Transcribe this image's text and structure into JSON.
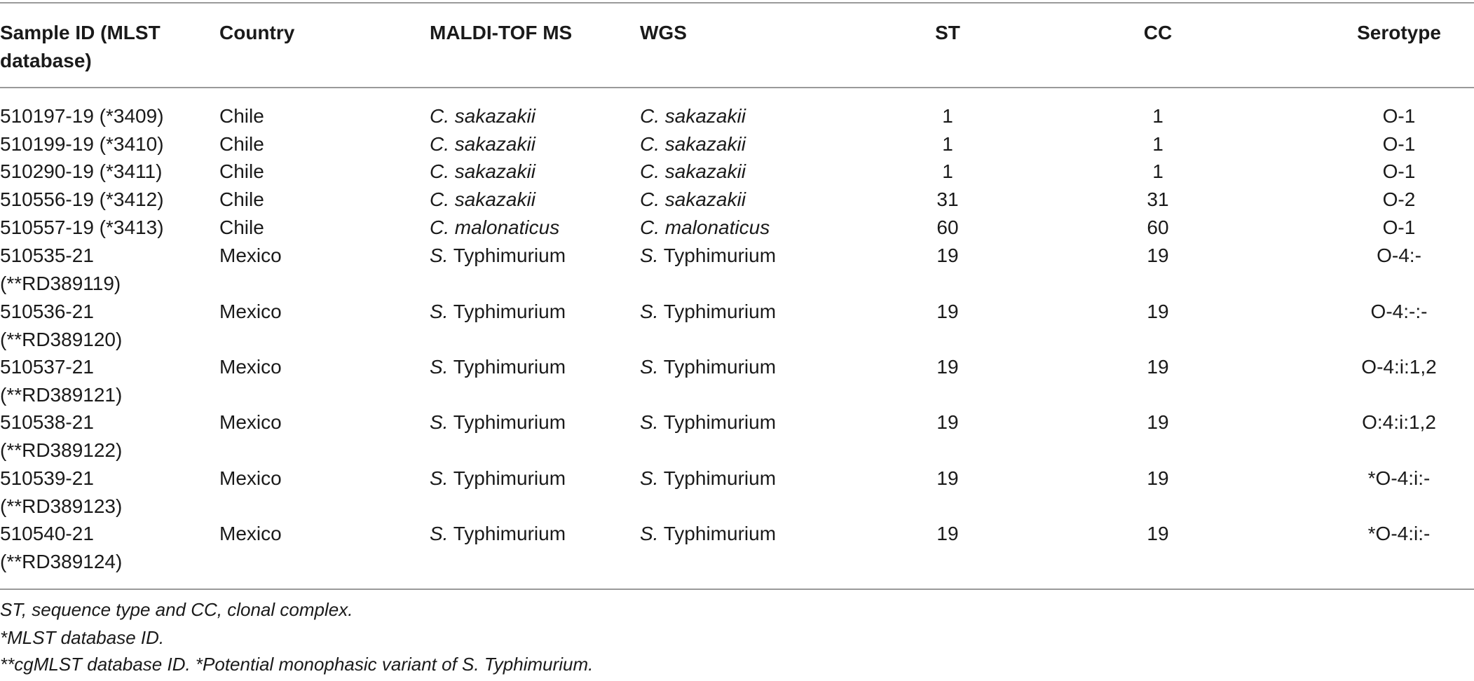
{
  "headers": {
    "sample_id": "Sample ID (MLST database)",
    "sample_id_line1": "Sample ID (MLST",
    "sample_id_line2": "database)",
    "country": "Country",
    "maldi": "MALDI-TOF MS",
    "wgs": "WGS",
    "st": "ST",
    "cc": "CC",
    "serotype": "Serotype"
  },
  "rows": [
    {
      "id_line1": "510197-19 (*3409)",
      "id_line2": "",
      "country": "Chile",
      "maldi_genus": "C.",
      "maldi_species": "sakazakii",
      "wgs_genus": "C.",
      "wgs_species": "sakazakii",
      "st": "1",
      "cc": "1",
      "serotype": "O-1"
    },
    {
      "id_line1": "510199-19 (*3410)",
      "id_line2": "",
      "country": "Chile",
      "maldi_genus": "C.",
      "maldi_species": "sakazakii",
      "wgs_genus": "C.",
      "wgs_species": "sakazakii",
      "st": "1",
      "cc": "1",
      "serotype": "O-1"
    },
    {
      "id_line1": "510290-19 (*3411)",
      "id_line2": "",
      "country": "Chile",
      "maldi_genus": "C.",
      "maldi_species": "sakazakii",
      "wgs_genus": "C.",
      "wgs_species": "sakazakii",
      "st": "1",
      "cc": "1",
      "serotype": "O-1"
    },
    {
      "id_line1": "510556-19 (*3412)",
      "id_line2": "",
      "country": "Chile",
      "maldi_genus": "C.",
      "maldi_species": "sakazakii",
      "wgs_genus": "C.",
      "wgs_species": "sakazakii",
      "st": "31",
      "cc": "31",
      "serotype": "O-2"
    },
    {
      "id_line1": "510557-19 (*3413)",
      "id_line2": "",
      "country": "Chile",
      "maldi_genus": "C.",
      "maldi_species": "malonaticus",
      "wgs_genus": "C.",
      "wgs_species": "malonaticus",
      "st": "60",
      "cc": "60",
      "serotype": "O-1"
    },
    {
      "id_line1": "510535-21",
      "id_line2": "(**RD389119)",
      "country": "Mexico",
      "maldi_genus": "S.",
      "maldi_species": "Typhimurium",
      "wgs_genus": "S.",
      "wgs_species": "Typhimurium",
      "st": "19",
      "cc": "19",
      "serotype": "O-4:-"
    },
    {
      "id_line1": "510536-21",
      "id_line2": "(**RD389120)",
      "country": "Mexico",
      "maldi_genus": "S.",
      "maldi_species": "Typhimurium",
      "wgs_genus": "S.",
      "wgs_species": "Typhimurium",
      "st": "19",
      "cc": "19",
      "serotype": "O-4:-:-"
    },
    {
      "id_line1": "510537-21",
      "id_line2": "(**RD389121)",
      "country": "Mexico",
      "maldi_genus": "S.",
      "maldi_species": "Typhimurium",
      "wgs_genus": "S.",
      "wgs_species": "Typhimurium",
      "st": "19",
      "cc": "19",
      "serotype": "O-4:i:1,2"
    },
    {
      "id_line1": "510538-21",
      "id_line2": "(**RD389122)",
      "country": "Mexico",
      "maldi_genus": "S.",
      "maldi_species": "Typhimurium",
      "wgs_genus": "S.",
      "wgs_species": "Typhimurium",
      "st": "19",
      "cc": "19",
      "serotype": "O:4:i:1,2"
    },
    {
      "id_line1": "510539-21",
      "id_line2": "(**RD389123)",
      "country": "Mexico",
      "maldi_genus": "S.",
      "maldi_species": "Typhimurium",
      "wgs_genus": "S.",
      "wgs_species": "Typhimurium",
      "st": "19",
      "cc": "19",
      "serotype": "*O-4:i:-"
    },
    {
      "id_line1": "510540-21",
      "id_line2": "(**RD389124)",
      "country": "Mexico",
      "maldi_genus": "S.",
      "maldi_species": "Typhimurium",
      "wgs_genus": "S.",
      "wgs_species": "Typhimurium",
      "st": "19",
      "cc": "19",
      "serotype": "*O-4:i:-"
    }
  ],
  "footnotes": [
    "ST, sequence type and CC, clonal complex.",
    "*MLST database ID.",
    "**cgMLST database ID. *Potential monophasic variant of S. Typhimurium."
  ]
}
